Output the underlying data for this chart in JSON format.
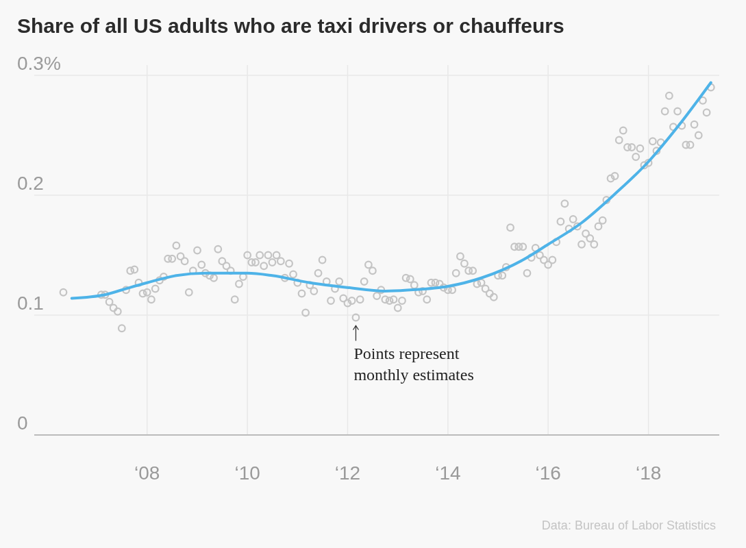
{
  "chart_data": {
    "type": "scatter",
    "title": "Share of all US adults who are taxi drivers or chauffeurs",
    "xlim": [
      "2005-10",
      "2019-06"
    ],
    "xticks": [
      {
        "value": "2008",
        "label": "‘08"
      },
      {
        "value": "2010",
        "label": "‘10"
      },
      {
        "value": "2012",
        "label": "‘12"
      },
      {
        "value": "2014",
        "label": "‘14"
      },
      {
        "value": "2016",
        "label": "‘16"
      },
      {
        "value": "2018",
        "label": "‘18"
      }
    ],
    "ylim": [
      0,
      0.3
    ],
    "yticks": [
      0,
      0.1,
      0.2,
      {
        "value": 0.3,
        "label": "0.3%"
      }
    ],
    "grid": true,
    "series": [
      {
        "color": "#c4c4c4",
        "marker": "circle",
        "x": [
          "2006-05",
          "2007-02",
          "2007-03",
          "2007-04",
          "2007-05",
          "2007-06",
          "2007-07",
          "2007-08",
          "2007-09",
          "2007-10",
          "2007-11",
          "2007-12",
          "2008-01",
          "2008-02",
          "2008-03",
          "2008-04",
          "2008-05",
          "2008-06",
          "2008-07",
          "2008-08",
          "2008-09",
          "2008-10",
          "2008-11",
          "2008-12",
          "2009-01",
          "2009-02",
          "2009-03",
          "2009-04",
          "2009-05",
          "2009-06",
          "2009-07",
          "2009-08",
          "2009-09",
          "2009-10",
          "2009-11",
          "2009-12",
          "2010-01",
          "2010-02",
          "2010-03",
          "2010-04",
          "2010-05",
          "2010-06",
          "2010-07",
          "2010-08",
          "2010-09",
          "2010-10",
          "2010-11",
          "2010-12",
          "2011-01",
          "2011-02",
          "2011-03",
          "2011-04",
          "2011-05",
          "2011-06",
          "2011-07",
          "2011-08",
          "2011-09",
          "2011-10",
          "2011-11",
          "2011-12",
          "2012-01",
          "2012-02",
          "2012-03",
          "2012-04",
          "2012-05",
          "2012-06",
          "2012-07",
          "2012-08",
          "2012-09",
          "2012-10",
          "2012-11",
          "2012-12",
          "2013-01",
          "2013-02",
          "2013-03",
          "2013-04",
          "2013-05",
          "2013-06",
          "2013-07",
          "2013-08",
          "2013-09",
          "2013-10",
          "2013-11",
          "2013-12",
          "2014-01",
          "2014-02",
          "2014-03",
          "2014-04",
          "2014-05",
          "2014-06",
          "2014-07",
          "2014-08",
          "2014-09",
          "2014-10",
          "2014-11",
          "2014-12",
          "2015-01",
          "2015-02",
          "2015-03",
          "2015-04",
          "2015-05",
          "2015-06",
          "2015-07",
          "2015-08",
          "2015-09",
          "2015-10",
          "2015-11",
          "2015-12",
          "2016-01",
          "2016-02",
          "2016-03",
          "2016-04",
          "2016-05",
          "2016-06",
          "2016-07",
          "2016-08",
          "2016-09",
          "2016-10",
          "2016-11",
          "2016-12",
          "2017-01",
          "2017-02",
          "2017-03",
          "2017-04",
          "2017-05",
          "2017-06",
          "2017-07",
          "2017-08",
          "2017-09",
          "2017-10",
          "2017-11",
          "2017-12",
          "2018-01",
          "2018-02",
          "2018-03",
          "2018-04",
          "2018-05",
          "2018-06",
          "2018-07",
          "2018-08",
          "2018-09",
          "2018-10",
          "2018-11",
          "2018-12",
          "2019-01",
          "2019-02",
          "2019-03",
          "2019-04"
        ],
        "values": [
          0.119,
          0.117,
          0.117,
          0.111,
          0.106,
          0.103,
          0.089,
          0.121,
          0.137,
          0.138,
          0.127,
          0.118,
          0.119,
          0.113,
          0.122,
          0.129,
          0.132,
          0.147,
          0.147,
          0.158,
          0.149,
          0.145,
          0.119,
          0.137,
          0.154,
          0.142,
          0.135,
          0.133,
          0.131,
          0.155,
          0.145,
          0.141,
          0.137,
          0.113,
          0.126,
          0.132,
          0.15,
          0.144,
          0.144,
          0.15,
          0.141,
          0.15,
          0.144,
          0.15,
          0.145,
          0.131,
          0.143,
          0.134,
          0.127,
          0.118,
          0.102,
          0.125,
          0.12,
          0.135,
          0.146,
          0.128,
          0.112,
          0.122,
          0.128,
          0.114,
          0.11,
          0.112,
          0.098,
          0.113,
          0.128,
          0.142,
          0.137,
          0.116,
          0.121,
          0.113,
          0.112,
          0.113,
          0.106,
          0.112,
          0.131,
          0.13,
          0.125,
          0.119,
          0.12,
          0.113,
          0.127,
          0.127,
          0.126,
          0.123,
          0.121,
          0.121,
          0.135,
          0.149,
          0.143,
          0.137,
          0.137,
          0.126,
          0.127,
          0.122,
          0.118,
          0.115,
          0.133,
          0.133,
          0.14,
          0.173,
          0.157,
          0.157,
          0.157,
          0.135,
          0.148,
          0.156,
          0.15,
          0.146,
          0.142,
          0.146,
          0.161,
          0.178,
          0.193,
          0.172,
          0.18,
          0.174,
          0.159,
          0.168,
          0.164,
          0.159,
          0.174,
          0.179,
          0.196,
          0.214,
          0.216,
          0.246,
          0.254,
          0.24,
          0.24,
          0.232,
          0.239,
          0.225,
          0.227,
          0.245,
          0.237,
          0.244,
          0.27,
          0.283,
          0.257,
          0.27,
          0.258,
          0.242,
          0.242,
          0.259,
          0.25,
          0.279,
          0.269,
          0.29
        ]
      },
      {
        "type": "line",
        "color": "#4eb3e8",
        "marker": "none",
        "line_style": "solid",
        "x": [
          "2006-07",
          "2007-03",
          "2007-07",
          "2008-01",
          "2008-08",
          "2009-03",
          "2010-01",
          "2010-07",
          "2011-04",
          "2012-01",
          "2012-10",
          "2013-04",
          "2014-01",
          "2014-09",
          "2015-07",
          "2016-01",
          "2016-09",
          "2017-05",
          "2018-01",
          "2018-08",
          "2019-04"
        ],
        "values": [
          0.114,
          0.117,
          0.121,
          0.127,
          0.133,
          0.135,
          0.135,
          0.133,
          0.127,
          0.123,
          0.12,
          0.121,
          0.124,
          0.131,
          0.146,
          0.159,
          0.177,
          0.201,
          0.228,
          0.257,
          0.294
        ]
      }
    ],
    "annotations": [
      {
        "text": "Points represent monthly estimates",
        "x": "2012-03",
        "y": 0.098
      },
      "Data: Bureau of Labor Statistics"
    ]
  }
}
